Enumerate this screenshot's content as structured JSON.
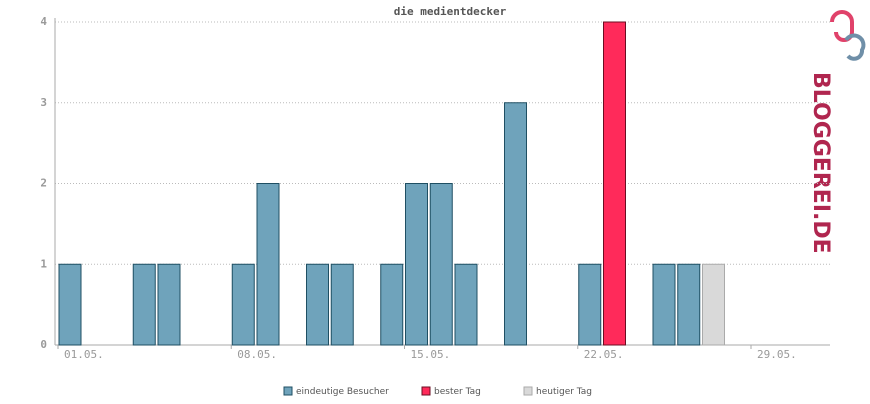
{
  "chart_data": {
    "type": "bar",
    "title": "die medientdecker",
    "logo": "BLOGGEREI.DE",
    "categories": [
      "01.05.",
      null,
      null,
      null,
      null,
      null,
      null,
      "08.05.",
      null,
      null,
      null,
      null,
      null,
      null,
      "15.05.",
      null,
      null,
      null,
      null,
      null,
      null,
      "22.05.",
      null,
      null,
      null,
      null,
      null,
      null,
      "29.05.",
      null,
      null
    ],
    "series": [
      {
        "name": "eindeutige Besucher",
        "color": "#6fa3bb",
        "values": [
          1,
          0,
          0,
          1,
          1,
          0,
          0,
          1,
          2,
          0,
          1,
          1,
          0,
          1,
          2,
          2,
          1,
          0,
          3,
          0,
          0,
          1,
          null,
          0,
          1,
          1,
          null,
          0,
          0,
          0,
          0
        ]
      },
      {
        "name": "bester Tag",
        "color": "#ff2a5a",
        "values": [
          null,
          null,
          null,
          null,
          null,
          null,
          null,
          null,
          null,
          null,
          null,
          null,
          null,
          null,
          null,
          null,
          null,
          null,
          null,
          null,
          null,
          null,
          4,
          null,
          null,
          null,
          null,
          null,
          null,
          null,
          null
        ]
      },
      {
        "name": "heutiger Tag",
        "color": "#d9d9d9",
        "values": [
          null,
          null,
          null,
          null,
          null,
          null,
          null,
          null,
          null,
          null,
          null,
          null,
          null,
          null,
          null,
          null,
          null,
          null,
          null,
          null,
          null,
          null,
          null,
          null,
          null,
          null,
          1,
          null,
          null,
          null,
          null
        ]
      }
    ],
    "ylim": [
      0,
      4
    ],
    "yticks": [
      0,
      1,
      2,
      3,
      4
    ],
    "grid": true
  }
}
